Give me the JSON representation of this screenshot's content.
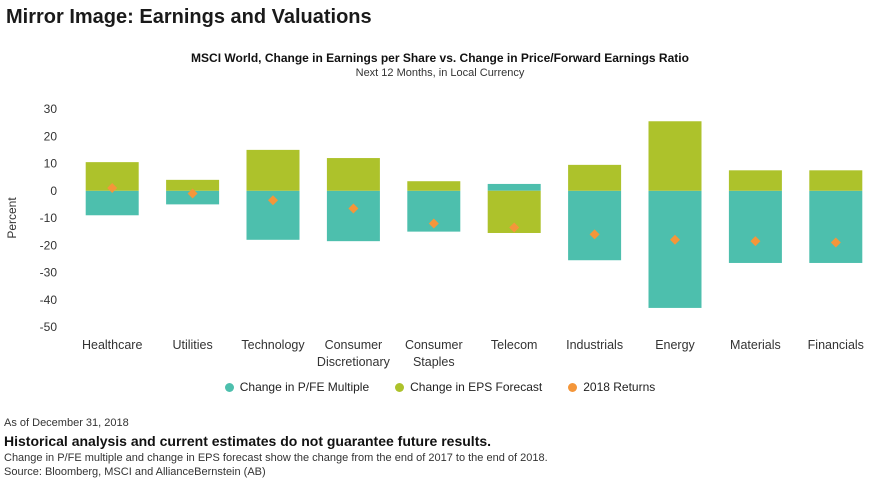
{
  "headline": "Mirror Image: Earnings and Valuations",
  "footer": {
    "as_of": "As of December 31, 2018",
    "disclaimer": "Historical analysis and current estimates do not guarantee future results.",
    "note": "Change in P/FE multiple and change in EPS forecast show the change from the end of 2017 to the end of 2018.",
    "source": "Source: Bloomberg, MSCI and AllianceBernstein (AB)"
  },
  "colors": {
    "pfe": "#4dbfad",
    "eps": "#adc22b",
    "returns": "#f4963a"
  },
  "chart_data": {
    "type": "bar",
    "title": "MSCI World, Change in Earnings per Share vs. Change in Price/Forward Earnings Ratio",
    "subtitle": "Next 12 Months, in Local Currency",
    "xlabel": "",
    "ylabel": "Percent",
    "ylim": [
      -50,
      30
    ],
    "yticks": [
      30,
      20,
      10,
      0,
      -10,
      -20,
      -30,
      -40,
      -50
    ],
    "categories": [
      [
        "Healthcare"
      ],
      [
        "Utilities"
      ],
      [
        "Technology"
      ],
      [
        "Consumer",
        "Discretionary"
      ],
      [
        "Consumer",
        "Staples"
      ],
      [
        "Telecom"
      ],
      [
        "Industrials"
      ],
      [
        "Energy"
      ],
      [
        "Materials"
      ],
      [
        "Financials"
      ]
    ],
    "series": [
      {
        "name": "Change in P/FE Multiple",
        "kind": "bar",
        "values": [
          -9,
          -5,
          -18,
          -18.5,
          -15,
          2.5,
          -25.5,
          -43,
          -26.5,
          -26.5
        ]
      },
      {
        "name": "Change in EPS Forecast",
        "kind": "bar",
        "values": [
          10.5,
          4,
          15,
          12,
          3.5,
          -15.5,
          9.5,
          25.5,
          7.5,
          7.5
        ]
      },
      {
        "name": "2018 Returns",
        "kind": "scatter",
        "values": [
          1,
          -1,
          -3.5,
          -6.5,
          -12,
          -13.5,
          -16,
          -18,
          -18.5,
          -19
        ]
      }
    ],
    "legend": "bottom",
    "grid": false
  }
}
